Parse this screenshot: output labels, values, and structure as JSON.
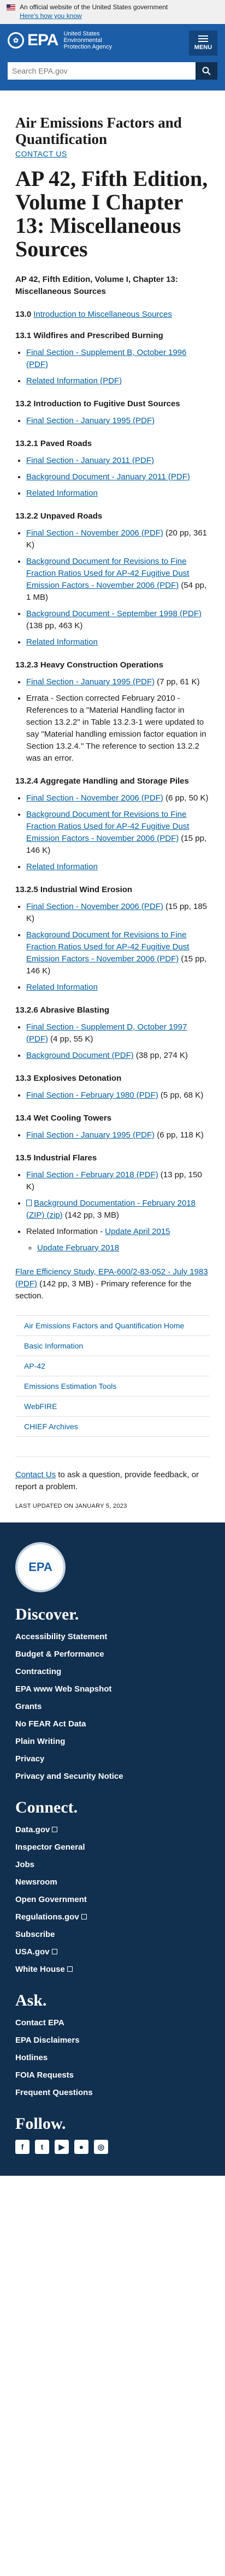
{
  "banner": {
    "text": "An official website of the United States government",
    "how": "Here's how you know"
  },
  "masthead": {
    "logo_text": "EPA",
    "agency": "United States Environmental Protection Agency",
    "menu_label": "MENU",
    "search_placeholder": "Search EPA.gov"
  },
  "area_title": "Air Emissions Factors and Quantification",
  "contact_us": "CONTACT US",
  "page_title": "AP 42, Fifth Edition, Volume I Chapter 13: Miscellaneous Sources",
  "intro": "AP 42, Fifth Edition, Volume I, Chapter 13: Miscellaneous Sources",
  "intro_sec": {
    "num": "13.0",
    "link": "Introduction to Miscellaneous Sources"
  },
  "s1": {
    "title": "13.1 Wildfires and Prescribed Burning",
    "i1": "Final Section - Supplement B, October 1996 (PDF)",
    "i2": "Related Information (PDF)"
  },
  "s2": {
    "title": "13.2 Introduction to Fugitive Dust Sources",
    "i1": "Final Section - January 1995 (PDF)"
  },
  "s3": {
    "title": "13.2.1 Paved Roads",
    "i1": "Final Section - January 2011 (PDF)",
    "i2": "Background Document - January 2011 (PDF)",
    "i3": "Related Information"
  },
  "s4": {
    "title": "13.2.2 Unpaved Roads",
    "i1": "Final Section - November 2006 (PDF)",
    "i1s": " (20 pp, 361 K)",
    "i2": "Background Document for Revisions to Fine Fraction Ratios Used for AP-42 Fugitive Dust Emission Factors - November 2006 (PDF)",
    "i2s": " (54 pp, 1 MB)",
    "i3": "Background Document - September 1998 (PDF)",
    "i3s": " (138 pp, 463 K)",
    "i4": "Related Information"
  },
  "s5": {
    "title": "13.2.3 Heavy Construction Operations",
    "i1": "Final Section - January 1995 (PDF)",
    "i1s": " (7 pp, 61 K)",
    "i2": "Errata - Section corrected February 2010 - References to a \"Material Handling factor in section 13.2.2\" in Table 13.2.3-1 were updated to say \"Material handling emission factor equation in Section 13.2.4.\" The reference to section 13.2.2 was an error."
  },
  "s6": {
    "title": "13.2.4 Aggregate Handling and Storage Piles",
    "i1": "Final Section - November 2006 (PDF)",
    "i1s": " (6 pp, 50 K)",
    "i2": "Background Document for Revisions to Fine Fraction Ratios Used for AP-42 Fugitive Dust Emission Factors - November 2006 (PDF)",
    "i2s": " (15 pp, 146 K)",
    "i3": "Related Information"
  },
  "s7": {
    "title": "13.2.5 Industrial Wind Erosion",
    "i1": "Final Section - November 2006 (PDF)",
    "i1s": " (15 pp, 185 K)",
    "i2": "Background Document for Revisions to Fine Fraction Ratios Used for AP-42 Fugitive Dust Emission Factors - November 2006 (PDF)",
    "i2s": " (15 pp, 146 K)",
    "i3": "Related Information"
  },
  "s8": {
    "title": "13.2.6 Abrasive Blasting",
    "i1": "Final Section - Supplement D, October 1997 (PDF)",
    "i1s": " (4 pp, 55 K)",
    "i2": "Background Document (PDF)",
    "i2s": " (38 pp, 274 K)"
  },
  "s9": {
    "title": "13.3 Explosives Detonation",
    "i1": "Final Section - February 1980 (PDF)",
    "i1s": " (5 pp, 68 K)"
  },
  "s10": {
    "title": "13.4 Wet Cooling Towers",
    "i1": "Final Section - January 1995 (PDF)",
    "i1s": " (6 pp, 118 K)"
  },
  "s11": {
    "title": "13.5 Industrial Flares",
    "i1": "Final Section - February 2018 (PDF)",
    "i1s": " (13 pp, 150 K)",
    "i2": "Background Documentation - February 2018 (ZIP) (zip)",
    "i2s": " (142 pp, 3 MB)",
    "i3": "Related Information - ",
    "i3l": "Update April 2015",
    "i4": "Update February 2018"
  },
  "final": {
    "link": "Flare Efficiency Study, EPA-600/2-83-052 - July 1983 (PDF)",
    "rest": " (142 pp, 3 MB) - Primary reference for the section."
  },
  "sidenav": [
    "Air Emissions Factors and Quantification Home",
    "Basic Information",
    "AP-42",
    "Emissions Estimation Tools",
    "WebFIRE",
    "CHIEF Archives"
  ],
  "contact_bottom": {
    "link": "Contact Us",
    "rest": " to ask a question, provide feedback, or report a problem."
  },
  "updated": "LAST UPDATED ON JANUARY 5, 2023",
  "footer": {
    "seal_text": "EPA",
    "discover_title": "Discover.",
    "discover": [
      "Accessibility Statement",
      "Budget & Performance",
      "Contracting",
      "EPA www Web Snapshot",
      "Grants",
      "No FEAR Act Data",
      "Plain Writing",
      "Privacy",
      "Privacy and Security Notice"
    ],
    "connect_title": "Connect.",
    "connect": [
      "Data.gov",
      "Inspector General",
      "Jobs",
      "Newsroom",
      "Open Government",
      "Regulations.gov",
      "Subscribe",
      "USA.gov",
      "White House"
    ],
    "ask_title": "Ask.",
    "ask": [
      "Contact EPA",
      "EPA Disclaimers",
      "Hotlines",
      "FOIA Requests",
      "Frequent Questions"
    ],
    "follow_title": "Follow.",
    "socials": [
      "facebook-icon",
      "twitter-icon",
      "youtube-icon",
      "flickr-icon",
      "instagram-icon"
    ]
  }
}
